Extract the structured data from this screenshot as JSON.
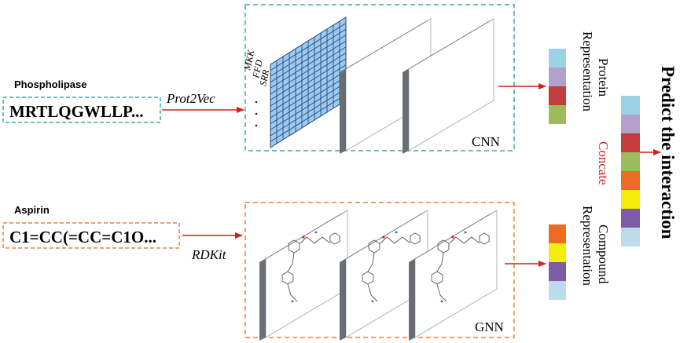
{
  "protein": {
    "name": "Phospholipase",
    "sequence": "MRTLQGWLLP...",
    "embed_method": "Prot2Vec",
    "seq_fragments": [
      "MKK",
      "FFD",
      "SRR"
    ],
    "network": "CNN",
    "representation_line1": "Protein",
    "representation_line2": "Representation",
    "colors": [
      "#9cd3e4",
      "#b4a0cc",
      "#c43c3c",
      "#9cbc5c"
    ]
  },
  "compound": {
    "name": "Aspirin",
    "smiles": "C1=CC(=CC=C1O...",
    "embed_method": "RDKit",
    "network": "GNN",
    "representation_line1": "Compound",
    "representation_line2": "Representation",
    "colors": [
      "#ec6c24",
      "#f4ec0c",
      "#7c5ca4",
      "#bcdcec"
    ]
  },
  "merge": {
    "label": "Concate",
    "colors": [
      "#9cd3e4",
      "#b4a0cc",
      "#c43c3c",
      "#9cbc5c",
      "#ec6c24",
      "#f4ec0c",
      "#7c5ca4",
      "#bcdcec"
    ]
  },
  "output": {
    "label": "Predict the interaction"
  },
  "style": {
    "arrow_color": "#d42020",
    "cnn_border": "#3aa8b4",
    "gnn_border": "#e8803c",
    "grid_fill": "#9ccaf0",
    "grid_line": "#2a4a7c"
  }
}
